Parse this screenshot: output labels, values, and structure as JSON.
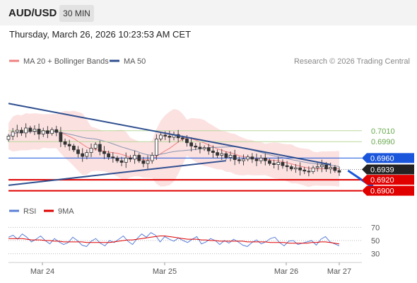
{
  "header": {
    "pair": "AUD/USD",
    "timeframe": "30 MIN"
  },
  "date_line": "Thursday, March 26, 2026 10:23:53 AM CET",
  "legend": {
    "ma20": "MA 20 + Bollinger Bands",
    "ma50": "MA 50",
    "credit": "Research © 2026 Trading Central"
  },
  "rsi_legend": {
    "rsi": "RSI",
    "ma9": "9MA"
  },
  "colors": {
    "ma20": "#f08080",
    "ma50": "#2f4f8f",
    "bands": "#fbdada",
    "resistance_green": "#b8d89a",
    "level_blue": "#1a56db",
    "level_red": "#e00000",
    "current": "#222222",
    "rsi": "#5b7fd6",
    "rsi_ma": "#e00000"
  },
  "chart_data": [
    {
      "type": "candlestick",
      "title": "AUD/USD",
      "timeframe": "30 MIN",
      "x_ticks": [
        "Mar 24",
        "Mar 25",
        "Mar 26",
        "Mar 27"
      ],
      "ylim": [
        0.688,
        0.712
      ],
      "levels": [
        {
          "value": 0.701,
          "label": "0.7010",
          "style": "green-line"
        },
        {
          "value": 0.699,
          "label": "0.6990",
          "style": "green-line"
        },
        {
          "value": 0.696,
          "label": "0.6960",
          "style": "blue-box"
        },
        {
          "value": 0.6939,
          "label": "0.6939",
          "style": "current-price"
        },
        {
          "value": 0.692,
          "label": "0.6920",
          "style": "red-box"
        },
        {
          "value": 0.69,
          "label": "0.6900",
          "style": "red-box"
        }
      ],
      "trendlines": [
        {
          "from": [
            0,
            0.706
          ],
          "to": [
            74,
            0.6948
          ]
        },
        {
          "from": [
            0,
            0.691
          ],
          "to": [
            50,
            0.6955
          ]
        }
      ],
      "forecast_arrow": {
        "from": [
          78,
          0.6937
        ],
        "to": [
          84,
          0.6902
        ]
      },
      "candles_close": [
        0.7,
        0.7008,
        0.7011,
        0.7006,
        0.7015,
        0.7009,
        0.7013,
        0.7004,
        0.701,
        0.7005,
        0.7012,
        0.7007,
        0.699,
        0.6985,
        0.6982,
        0.6975,
        0.6968,
        0.6963,
        0.697,
        0.6978,
        0.6985,
        0.6972,
        0.6968,
        0.6962,
        0.696,
        0.6955,
        0.6952,
        0.696,
        0.6958,
        0.6965,
        0.6955,
        0.695,
        0.6955,
        0.6965,
        0.6995,
        0.7002,
        0.7,
        0.6998,
        0.7003,
        0.6997,
        0.6995,
        0.6988,
        0.6982,
        0.698,
        0.6977,
        0.6979,
        0.6973,
        0.697,
        0.6965,
        0.6968,
        0.6961,
        0.6965,
        0.6957,
        0.6955,
        0.6958,
        0.6962,
        0.6958,
        0.6955,
        0.696,
        0.6955,
        0.695,
        0.6948,
        0.6952,
        0.6946,
        0.6944,
        0.694,
        0.6942,
        0.6938,
        0.6936,
        0.6935,
        0.6942,
        0.6944,
        0.6947,
        0.694,
        0.6943,
        0.6937,
        0.6934
      ]
    },
    {
      "type": "line",
      "title": "RSI",
      "series_names": [
        "RSI",
        "9MA"
      ],
      "y_ticks": [
        70,
        50,
        30
      ],
      "ylim": [
        20,
        80
      ],
      "rsi_values": [
        55,
        58,
        52,
        60,
        55,
        48,
        52,
        57,
        50,
        45,
        53,
        48,
        44,
        47,
        55,
        50,
        43,
        41,
        49,
        53,
        46,
        42,
        50,
        47,
        52,
        57,
        49,
        44,
        53,
        60,
        55,
        62,
        58,
        48,
        56,
        52,
        49,
        54,
        50,
        47,
        52,
        56,
        45,
        48,
        53,
        50,
        44,
        50,
        46,
        52,
        48,
        43,
        41,
        47,
        51,
        45,
        48,
        53,
        55,
        47,
        42,
        49,
        50,
        44,
        46,
        48,
        50,
        43,
        52,
        56,
        48,
        45,
        42
      ],
      "ma_values": [
        53,
        53,
        53,
        53,
        52,
        51,
        51,
        51,
        50,
        50,
        49,
        49,
        48,
        48,
        48,
        48,
        48,
        47,
        47,
        47,
        47,
        47,
        47,
        48,
        49,
        50,
        51,
        51,
        52,
        53,
        54,
        55,
        56,
        57,
        57,
        56,
        55,
        54,
        53,
        52,
        52,
        52,
        51,
        51,
        50,
        50,
        49,
        49,
        49,
        49,
        49,
        49,
        48,
        48,
        48,
        48,
        48,
        47,
        47,
        47,
        47,
        46,
        46,
        46,
        46,
        46,
        47,
        47,
        48,
        48,
        47,
        46,
        45
      ]
    }
  ]
}
